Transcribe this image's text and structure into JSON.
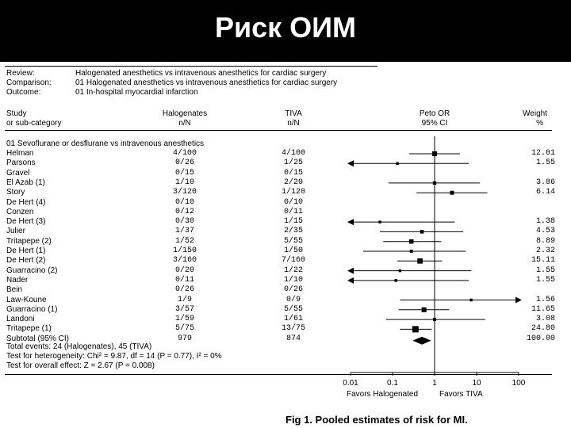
{
  "slide": {
    "title": "Риск ОИМ"
  },
  "review_meta": [
    {
      "label": "Review:",
      "value": "Halogenated anesthetics vs intravenous anesthetics for cardiac surgery"
    },
    {
      "label": "Comparison:",
      "value": "01 Halogenated anesthetics vs intravenous anesthetics for cardiac surgery"
    },
    {
      "label": "Outcome:",
      "value": "01 In-hospital myocardial infarction"
    }
  ],
  "headers": {
    "study_1": "Study",
    "study_2": "or sub-category",
    "hal_1": "Halogenates",
    "hal_2": "n/N",
    "tiva_1": "TIVA",
    "tiva_2": "n/N",
    "or_1": "Peto OR",
    "or_2": "95% CI",
    "w_1": "Weight",
    "w_2": "%"
  },
  "group_title": "01 Sevoflurane or desflurane vs intravenous anesthetics",
  "footer": {
    "total_events": "Total events: 24 (Halogenates), 45 (TIVA)",
    "heterogeneity": "Test for heterogeneity: Chi² = 9.87, df = 14 (P = 0.77), I² = 0%",
    "overall": "Test for overall effect: Z = 2.67 (P = 0.008)"
  },
  "favors_left": "Favors Halogenated",
  "favors_right": "Favors TIVA",
  "caption": "Fig 1.   Pooled estimates of risk for MI.",
  "chart_data": {
    "type": "forest",
    "x_scale": "log",
    "x_range": [
      0.01,
      100
    ],
    "x_ticks": [
      {
        "value": 0.01,
        "label": "0.01"
      },
      {
        "value": 0.1,
        "label": "0.1"
      },
      {
        "value": 1,
        "label": "1"
      },
      {
        "value": 10,
        "label": "10"
      },
      {
        "value": 100,
        "label": "100"
      }
    ],
    "studies": [
      {
        "name": "Helman",
        "hal": "4/100",
        "tiva": "4/100",
        "or": 1.0,
        "lo": 0.25,
        "hi": 4.0,
        "weight": "12.01",
        "arrow": ""
      },
      {
        "name": "Parsons",
        "hal": "0/26",
        "tiva": "1/25",
        "or": 0.13,
        "lo": 0.01,
        "hi": 6.5,
        "weight": "1.55",
        "arrow": "left"
      },
      {
        "name": "Gravel",
        "hal": "0/15",
        "tiva": "0/15",
        "or": null,
        "lo": null,
        "hi": null,
        "weight": "",
        "arrow": ""
      },
      {
        "name": "El Azab (1)",
        "hal": "1/10",
        "tiva": "2/20",
        "or": 1.0,
        "lo": 0.08,
        "hi": 12.0,
        "weight": "3.86",
        "arrow": ""
      },
      {
        "name": "Story",
        "hal": "3/120",
        "tiva": "1/120",
        "or": 2.6,
        "lo": 0.37,
        "hi": 18.0,
        "weight": "6.14",
        "arrow": ""
      },
      {
        "name": "De Hert (4)",
        "hal": "0/10",
        "tiva": "0/10",
        "or": null,
        "lo": null,
        "hi": null,
        "weight": "",
        "arrow": ""
      },
      {
        "name": "Conzen",
        "hal": "0/12",
        "tiva": "0/11",
        "or": null,
        "lo": null,
        "hi": null,
        "weight": "",
        "arrow": ""
      },
      {
        "name": "De Hert (3)",
        "hal": "0/30",
        "tiva": "1/15",
        "or": 0.05,
        "lo": 0.01,
        "hi": 3.0,
        "weight": "1.38",
        "arrow": "left"
      },
      {
        "name": "Julier",
        "hal": "1/37",
        "tiva": "2/35",
        "or": 0.5,
        "lo": 0.05,
        "hi": 4.8,
        "weight": "4.53",
        "arrow": ""
      },
      {
        "name": "Tritapepe (2)",
        "hal": "1/52",
        "tiva": "5/55",
        "or": 0.28,
        "lo": 0.06,
        "hi": 1.45,
        "weight": "8.89",
        "arrow": ""
      },
      {
        "name": "De Hert (1)",
        "hal": "1/150",
        "tiva": "1/50",
        "or": 0.28,
        "lo": 0.02,
        "hi": 5.5,
        "weight": "2.32",
        "arrow": ""
      },
      {
        "name": "De Hert (2)",
        "hal": "3/160",
        "tiva": "7/160",
        "or": 0.45,
        "lo": 0.13,
        "hi": 1.5,
        "weight": "15.11",
        "arrow": ""
      },
      {
        "name": "Guarracino (2)",
        "hal": "0/20",
        "tiva": "1/22",
        "or": 0.15,
        "lo": 0.01,
        "hi": 7.5,
        "weight": "1.55",
        "arrow": "left"
      },
      {
        "name": "Nader",
        "hal": "0/11",
        "tiva": "1/10",
        "or": 0.12,
        "lo": 0.01,
        "hi": 6.5,
        "weight": "1.55",
        "arrow": "left"
      },
      {
        "name": "Bein",
        "hal": "0/26",
        "tiva": "0/26",
        "or": null,
        "lo": null,
        "hi": null,
        "weight": "",
        "arrow": ""
      },
      {
        "name": "Law-Koune",
        "hal": "1/9",
        "tiva": "0/9",
        "or": 7.4,
        "lo": 0.15,
        "hi": 100,
        "weight": "1.56",
        "arrow": "right"
      },
      {
        "name": "Guarracino (1)",
        "hal": "3/57",
        "tiva": "5/55",
        "or": 0.56,
        "lo": 0.14,
        "hi": 2.2,
        "weight": "11.65",
        "arrow": ""
      },
      {
        "name": "Landoni",
        "hal": "1/59",
        "tiva": "1/61",
        "or": 1.0,
        "lo": 0.07,
        "hi": 16.0,
        "weight": "3.08",
        "arrow": ""
      },
      {
        "name": "Tritapepe (1)",
        "hal": "5/75",
        "tiva": "13/75",
        "or": 0.35,
        "lo": 0.15,
        "hi": 0.85,
        "weight": "24.80",
        "arrow": ""
      }
    ],
    "subtotal": {
      "name": "Subtotal (95% CI)",
      "hal": "979",
      "tiva": "874",
      "or": 0.5,
      "lo": 0.3,
      "hi": 0.83,
      "weight": "100.00"
    }
  }
}
